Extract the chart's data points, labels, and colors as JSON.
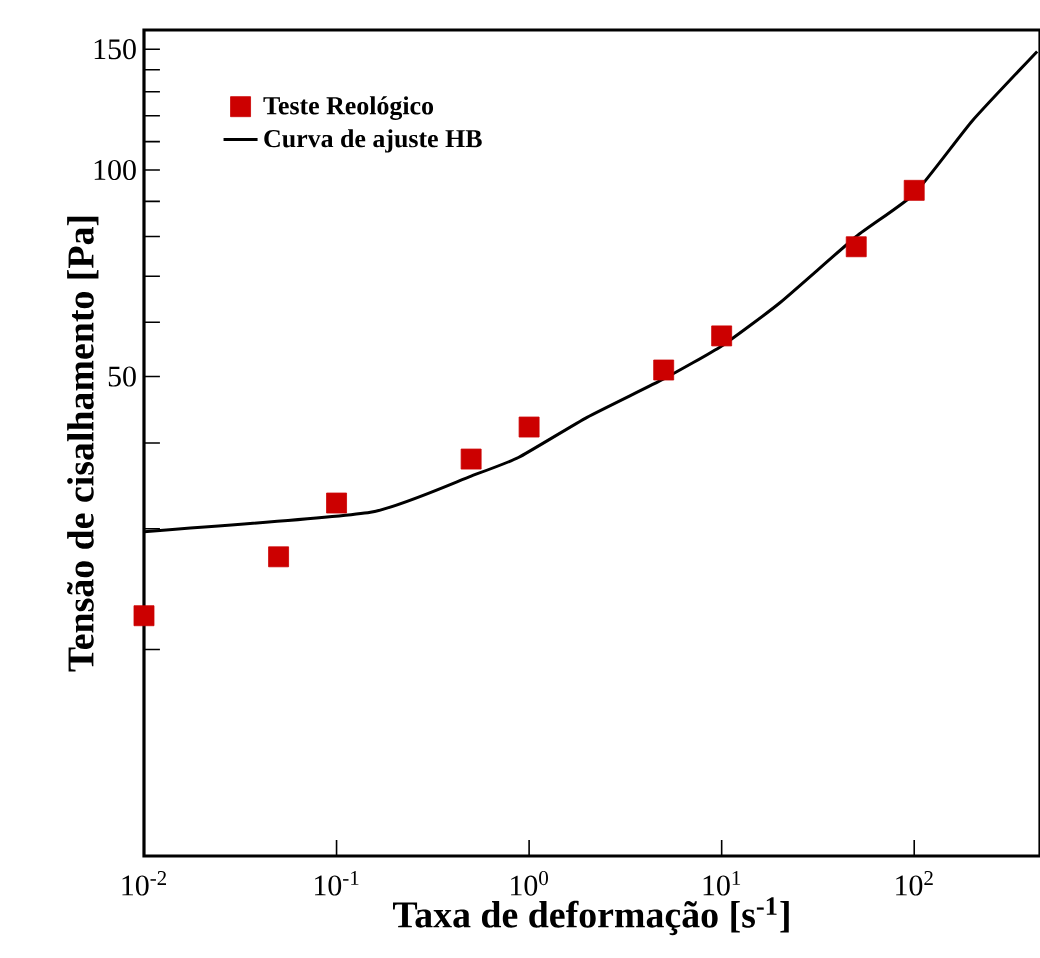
{
  "chart_data": {
    "type": "scatter",
    "xlabel": "Taxa de deformação [s$^{-1}$]",
    "ylabel": "Tensão de cisalhamento [Pa]",
    "log": "xy",
    "grid": false,
    "legend": "top left",
    "xlim": [
      0.01,
      450
    ],
    "ylim": [
      10,
      160
    ],
    "xticks": [
      {
        "value": 0.01,
        "label": "10$^{-2}$"
      },
      {
        "value": 0.1,
        "label": "10$^{-1}$"
      },
      {
        "value": 1,
        "label": "10$^{0}$"
      },
      {
        "value": 10,
        "label": "10$^{1}$"
      },
      {
        "value": 100,
        "label": "10$^{2}$"
      }
    ],
    "yticks": [
      {
        "value": 20,
        "label": null
      },
      {
        "value": 30,
        "label": null
      },
      {
        "value": 40,
        "label": null
      },
      50,
      {
        "value": 60,
        "label": null
      },
      {
        "value": 70,
        "label": null
      },
      {
        "value": 80,
        "label": null
      },
      {
        "value": 90,
        "label": null
      },
      100,
      {
        "value": 110,
        "label": null
      },
      {
        "value": 120,
        "label": null
      },
      {
        "value": 130,
        "label": null
      },
      {
        "value": 140,
        "label": null
      },
      150
    ],
    "series": [
      {
        "name": "Teste Reológico",
        "marker": "square",
        "color": "#cc0000",
        "x": [
          0.01,
          0.05,
          0.1,
          0.5,
          1,
          5,
          10,
          50,
          100
        ],
        "values": [
          22.4,
          27.3,
          32.7,
          37.9,
          42.2,
          51.1,
          57.3,
          77.3,
          93.4
        ]
      },
      {
        "name": "Curva de ajuste HB",
        "type": "line",
        "marker": "none",
        "line_style": "solid",
        "color": "#000000",
        "x": [
          0.01,
          0.15,
          0.5,
          0.88,
          2,
          5,
          10,
          20,
          50,
          100,
          200,
          435
        ],
        "values": [
          29.7,
          31.7,
          35.8,
          38.1,
          43.6,
          49.6,
          55.4,
          64,
          80,
          92.3,
          117.9,
          148.9
        ]
      }
    ]
  }
}
